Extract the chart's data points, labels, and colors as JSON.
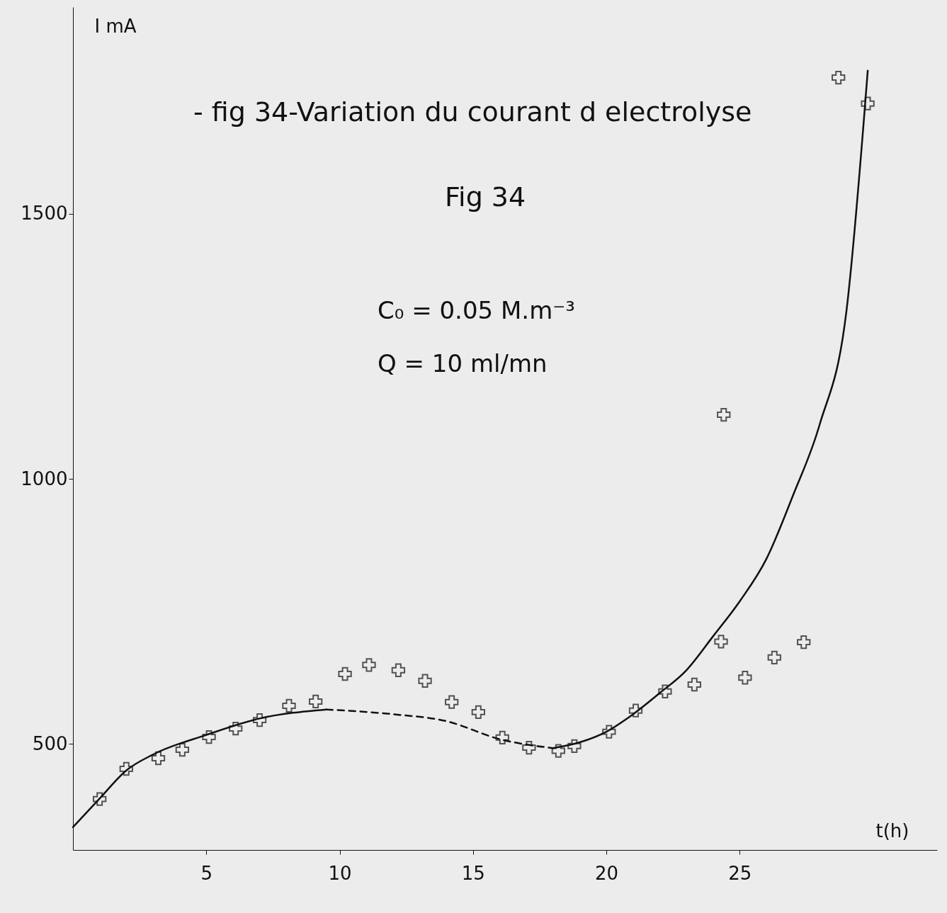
{
  "chart_data": {
    "type": "scatter",
    "title": "- fig 34-Variation du courant d electrolyse",
    "subtitle": "Fig 34",
    "xlabel": "t(h)",
    "ylabel": "I  mA",
    "annotations": [
      "C₀ = 0.05 M.m⁻³",
      "Q = 10 ml/mn"
    ],
    "xlim": [
      0,
      32.4
    ],
    "ylim": [
      300,
      1890
    ],
    "xticks": [
      5,
      10,
      15,
      20,
      25
    ],
    "yticks": [
      500,
      1000,
      1500
    ],
    "grid": false,
    "series": [
      {
        "marker": "cross",
        "color": "#111111",
        "x": [
          1.0,
          2.0,
          3.2,
          4.1,
          5.1,
          6.1,
          7.0,
          8.1,
          9.1,
          10.2,
          11.1,
          12.2,
          13.2,
          14.2,
          15.2,
          16.1,
          17.1,
          18.2,
          18.8,
          20.1,
          21.1,
          22.2,
          23.3,
          24.3,
          24.4,
          25.2,
          26.3,
          27.4,
          28.7,
          29.8
        ],
        "values": [
          396,
          453,
          473,
          489,
          513,
          529,
          545,
          572,
          580,
          632,
          649,
          639,
          619,
          579,
          560,
          512,
          493,
          487,
          496,
          523,
          563,
          599,
          612,
          693,
          1121,
          625,
          663,
          692,
          1757,
          1708
        ]
      },
      {
        "type": "line",
        "color": "#111111",
        "line_style": "solid",
        "x": [
          0,
          1,
          2,
          3,
          5,
          7,
          9.5
        ],
        "values": [
          343,
          397,
          450,
          480,
          517,
          548,
          565
        ]
      },
      {
        "type": "line",
        "color": "#111111",
        "line_style": "dashed",
        "x": [
          9.5,
          12,
          14,
          16,
          18
        ],
        "values": [
          565,
          556,
          543,
          509,
          492
        ]
      },
      {
        "type": "line",
        "color": "#111111",
        "line_style": "solid",
        "x": [
          18,
          19,
          20,
          21,
          22,
          23,
          24,
          25,
          26,
          27,
          28,
          29,
          29.8
        ],
        "values": [
          492,
          503,
          523,
          556,
          596,
          639,
          703,
          769,
          849,
          969,
          1103,
          1316,
          1770
        ]
      }
    ]
  }
}
